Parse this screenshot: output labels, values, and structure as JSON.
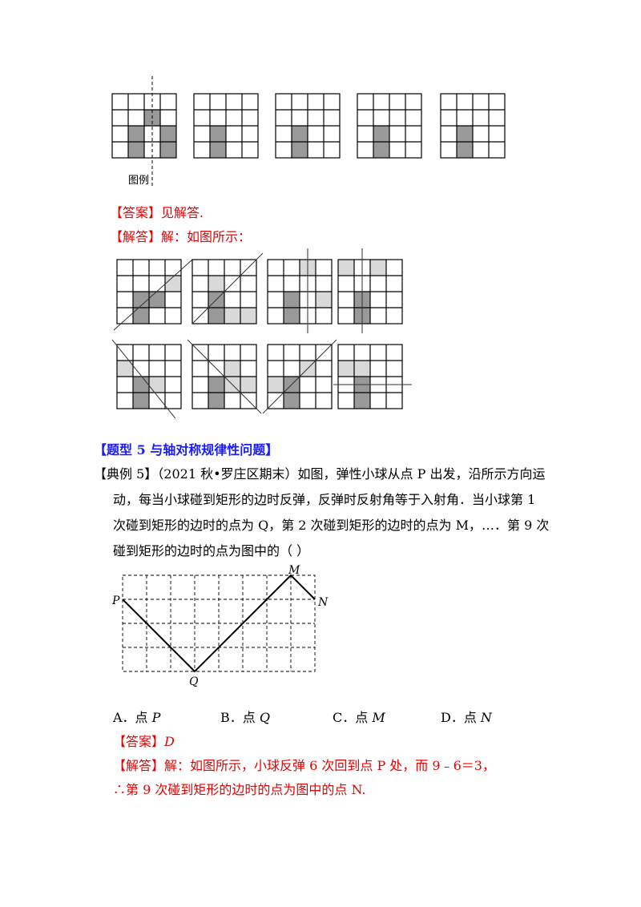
{
  "top_grids": {
    "legend_label": "图例",
    "count": 5
  },
  "answer1": {
    "tag": "【答案】",
    "text": "见解答."
  },
  "solution1": {
    "tag": "【解答】",
    "text": "解：如图所示："
  },
  "section_title": "【题型 5  与轴对称规律性问题】",
  "example": {
    "tag": "【典例 5】",
    "line1": "（2021 秋•罗庄区期末）如图，弹性小球从点 P 出发，沿所示方向运",
    "line2": "动，每当小球碰到矩形的边时反弹，反弹时反射角等于入射角．当小球第 1",
    "line3": "次碰到矩形的边时的点为 Q，第 2 次碰到矩形的边时的点为 M，…．第 9 次",
    "line4": "碰到矩形的边时的点为图中的（        ）"
  },
  "figure_labels": {
    "P": "P",
    "Q": "Q",
    "M": "M",
    "N": "N"
  },
  "options": [
    {
      "label": "A．点 ",
      "point": "P"
    },
    {
      "label": "B．点 ",
      "point": "Q"
    },
    {
      "label": "C．点 ",
      "point": "M"
    },
    {
      "label": "D．点 ",
      "point": "N"
    }
  ],
  "answer2": {
    "tag": "【答案】",
    "value": "D"
  },
  "solution2": {
    "tag": "【解答】",
    "line1": "解：如图所示，小球反弹 6 次回到点 P 处，而 9﹣6＝3，",
    "line2": "∴第 9 次碰到矩形的边时的点为图中的点 N."
  },
  "colors": {
    "red": "#e60000",
    "blue": "#1a1aff",
    "dark_gray": "#999999",
    "light_gray": "#d9d9d9"
  }
}
